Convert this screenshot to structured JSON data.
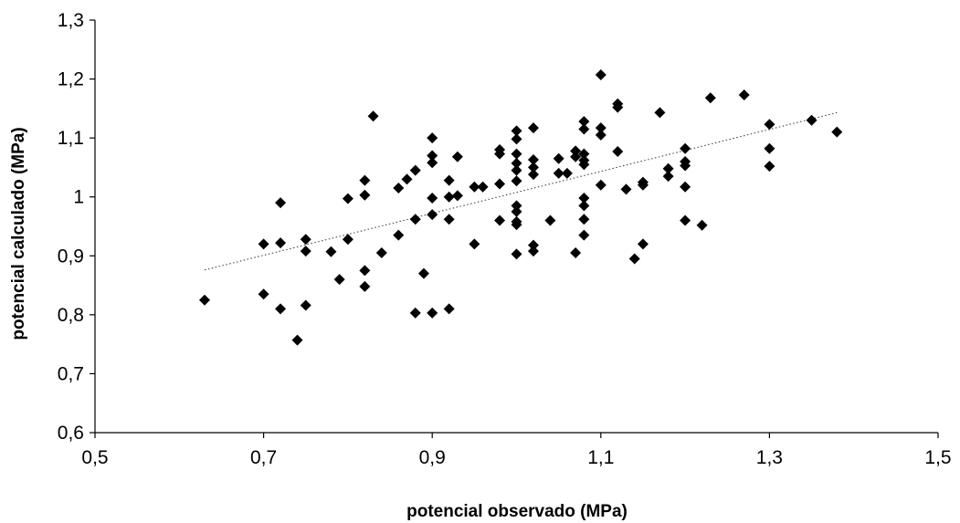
{
  "chart_data": {
    "type": "scatter",
    "title": "",
    "xlabel": "potencial observado (MPa)",
    "ylabel": "potencial calculado (MPa)",
    "xlim": [
      0.5,
      1.5
    ],
    "ylim": [
      0.6,
      1.3
    ],
    "x_ticks": [
      0.5,
      0.7,
      0.9,
      1.1,
      1.3,
      1.5
    ],
    "y_ticks": [
      0.6,
      0.7,
      0.8,
      0.9,
      1.0,
      1.1,
      1.2,
      1.3
    ],
    "x_tick_labels": [
      "0,5",
      "0,7",
      "0,9",
      "1,1",
      "1,3",
      "1,5"
    ],
    "y_tick_labels": [
      "0,6",
      "0,7",
      "0,8",
      "0,9",
      "1",
      "1,1",
      "1,2",
      "1,3"
    ],
    "grid": false,
    "legend": "none",
    "marker": "diamond",
    "marker_color": "#000000",
    "trendline": {
      "type": "linear",
      "style": "dotted",
      "x": [
        0.63,
        1.38
      ],
      "y": [
        0.876,
        1.143
      ]
    },
    "points": [
      [
        0.63,
        0.825
      ],
      [
        0.7,
        0.92
      ],
      [
        0.7,
        0.835
      ],
      [
        0.72,
        0.99
      ],
      [
        0.72,
        0.922
      ],
      [
        0.72,
        0.81
      ],
      [
        0.74,
        0.757
      ],
      [
        0.75,
        0.928
      ],
      [
        0.75,
        0.908
      ],
      [
        0.75,
        0.816
      ],
      [
        0.78,
        0.907
      ],
      [
        0.79,
        0.86
      ],
      [
        0.8,
        0.997
      ],
      [
        0.8,
        0.928
      ],
      [
        0.82,
        1.028
      ],
      [
        0.82,
        1.003
      ],
      [
        0.82,
        0.875
      ],
      [
        0.82,
        0.848
      ],
      [
        0.83,
        1.137
      ],
      [
        0.84,
        0.905
      ],
      [
        0.86,
        1.015
      ],
      [
        0.86,
        0.935
      ],
      [
        0.87,
        1.03
      ],
      [
        0.88,
        1.045
      ],
      [
        0.88,
        0.962
      ],
      [
        0.88,
        0.803
      ],
      [
        0.89,
        0.87
      ],
      [
        0.9,
        1.1
      ],
      [
        0.9,
        1.07
      ],
      [
        0.9,
        1.058
      ],
      [
        0.9,
        0.998
      ],
      [
        0.9,
        0.97
      ],
      [
        0.9,
        0.803
      ],
      [
        0.92,
        1.028
      ],
      [
        0.92,
        1.0
      ],
      [
        0.92,
        0.962
      ],
      [
        0.92,
        0.81
      ],
      [
        0.93,
        1.068
      ],
      [
        0.93,
        1.002
      ],
      [
        0.95,
        1.017
      ],
      [
        0.95,
        0.92
      ],
      [
        0.96,
        1.017
      ],
      [
        0.98,
        1.08
      ],
      [
        0.98,
        1.073
      ],
      [
        0.98,
        1.022
      ],
      [
        0.98,
        0.96
      ],
      [
        1.0,
        1.112
      ],
      [
        1.0,
        1.098
      ],
      [
        1.0,
        1.073
      ],
      [
        1.0,
        1.057
      ],
      [
        1.0,
        1.045
      ],
      [
        1.0,
        1.027
      ],
      [
        1.0,
        0.985
      ],
      [
        1.0,
        0.975
      ],
      [
        1.0,
        0.958
      ],
      [
        1.0,
        0.953
      ],
      [
        1.0,
        0.903
      ],
      [
        1.02,
        1.117
      ],
      [
        1.02,
        1.063
      ],
      [
        1.02,
        1.05
      ],
      [
        1.02,
        1.038
      ],
      [
        1.02,
        0.918
      ],
      [
        1.02,
        0.908
      ],
      [
        1.04,
        0.96
      ],
      [
        1.05,
        1.065
      ],
      [
        1.05,
        1.04
      ],
      [
        1.06,
        1.04
      ],
      [
        1.07,
        1.078
      ],
      [
        1.07,
        1.068
      ],
      [
        1.07,
        0.905
      ],
      [
        1.08,
        1.128
      ],
      [
        1.08,
        1.115
      ],
      [
        1.08,
        1.073
      ],
      [
        1.08,
        1.062
      ],
      [
        1.08,
        1.055
      ],
      [
        1.08,
        0.998
      ],
      [
        1.08,
        0.985
      ],
      [
        1.08,
        0.962
      ],
      [
        1.08,
        0.935
      ],
      [
        1.1,
        1.207
      ],
      [
        1.1,
        1.117
      ],
      [
        1.1,
        1.105
      ],
      [
        1.1,
        1.02
      ],
      [
        1.12,
        1.158
      ],
      [
        1.12,
        1.152
      ],
      [
        1.12,
        1.077
      ],
      [
        1.13,
        1.013
      ],
      [
        1.14,
        0.895
      ],
      [
        1.15,
        1.025
      ],
      [
        1.15,
        1.02
      ],
      [
        1.15,
        0.92
      ],
      [
        1.17,
        1.143
      ],
      [
        1.18,
        1.048
      ],
      [
        1.18,
        1.035
      ],
      [
        1.2,
        1.082
      ],
      [
        1.2,
        1.06
      ],
      [
        1.2,
        1.053
      ],
      [
        1.2,
        1.017
      ],
      [
        1.2,
        0.96
      ],
      [
        1.22,
        0.952
      ],
      [
        1.23,
        1.168
      ],
      [
        1.27,
        1.173
      ],
      [
        1.3,
        1.123
      ],
      [
        1.3,
        1.082
      ],
      [
        1.3,
        1.052
      ],
      [
        1.35,
        1.13
      ],
      [
        1.38,
        1.11
      ]
    ]
  }
}
